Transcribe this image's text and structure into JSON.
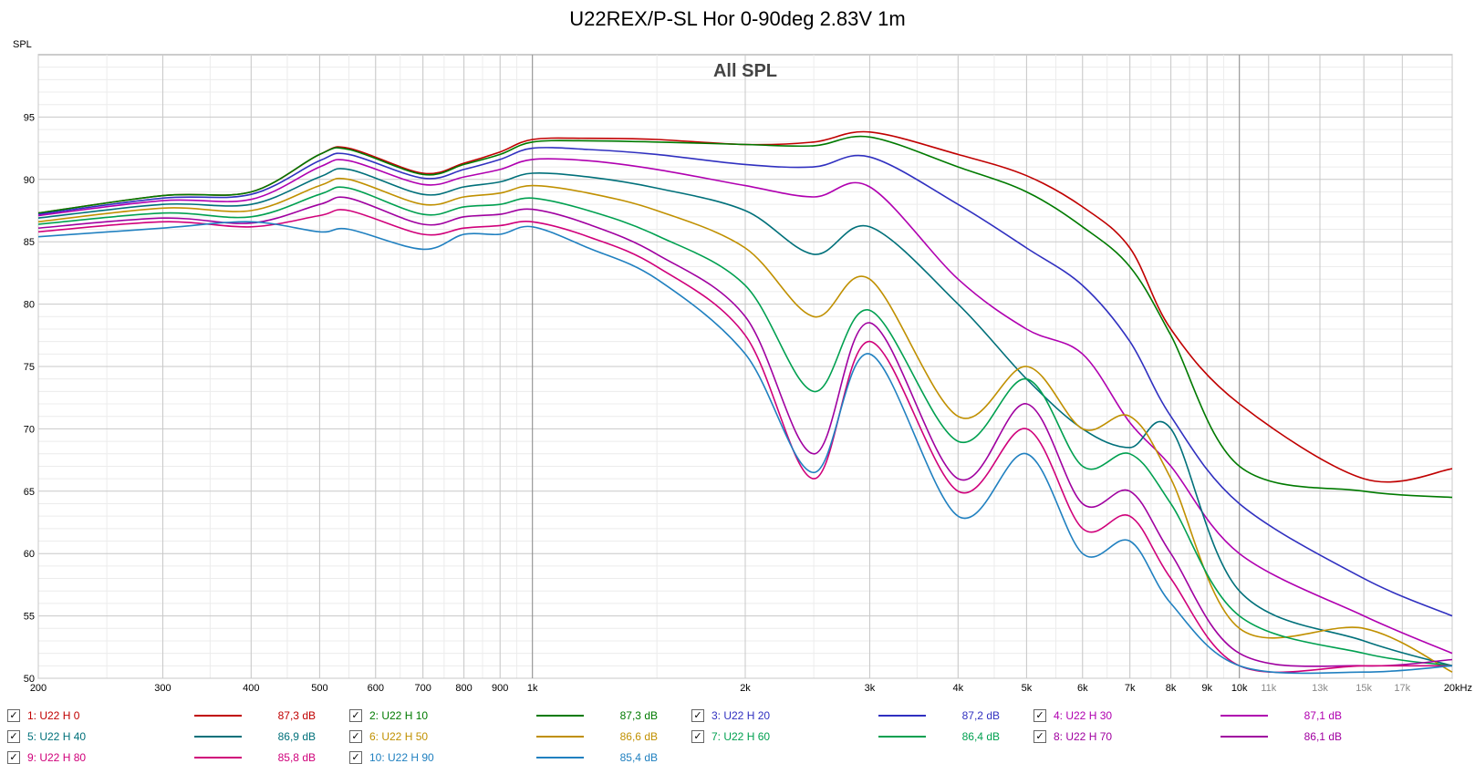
{
  "chart_data": {
    "type": "line",
    "title": "U22REX/P-SL Hor 0-90deg 2.83V 1m",
    "subtitle": "All SPL",
    "ylabel": "SPL",
    "xunit": "Hz",
    "xscale": "log",
    "xlim": [
      200,
      20000
    ],
    "ylim": [
      50,
      100
    ],
    "yticks": [
      50,
      55,
      60,
      65,
      70,
      75,
      80,
      85,
      90,
      95
    ],
    "xticks": [
      {
        "value": 200,
        "label": "200"
      },
      {
        "value": 300,
        "label": "300"
      },
      {
        "value": 400,
        "label": "400"
      },
      {
        "value": 500,
        "label": "500"
      },
      {
        "value": 600,
        "label": "600"
      },
      {
        "value": 700,
        "label": "700"
      },
      {
        "value": 800,
        "label": "800"
      },
      {
        "value": 900,
        "label": "900"
      },
      {
        "value": 1000,
        "label": "1k"
      },
      {
        "value": 2000,
        "label": "2k"
      },
      {
        "value": 3000,
        "label": "3k"
      },
      {
        "value": 4000,
        "label": "4k"
      },
      {
        "value": 5000,
        "label": "5k"
      },
      {
        "value": 6000,
        "label": "6k"
      },
      {
        "value": 7000,
        "label": "7k"
      },
      {
        "value": 8000,
        "label": "8k"
      },
      {
        "value": 9000,
        "label": "9k"
      },
      {
        "value": 10000,
        "label": "10k"
      },
      {
        "value": 11000,
        "label": "11k"
      },
      {
        "value": 13000,
        "label": "13k"
      },
      {
        "value": 15000,
        "label": "15k"
      },
      {
        "value": 17000,
        "label": "17k"
      },
      {
        "value": 20000,
        "label": "20kHz"
      }
    ],
    "grid": true,
    "legend_position": "bottom",
    "x": [
      200,
      300,
      400,
      500,
      550,
      700,
      800,
      900,
      1000,
      1200,
      1500,
      2000,
      2500,
      3000,
      4000,
      5000,
      6000,
      7000,
      8000,
      10000,
      15000,
      20000
    ],
    "series": [
      {
        "name": "1: U22 H 0",
        "value_label": "87,3 dB",
        "color": "#c00000",
        "values": [
          87.3,
          88.7,
          89.0,
          92.0,
          92.5,
          90.5,
          91.3,
          92.2,
          93.2,
          93.3,
          93.2,
          92.8,
          93.0,
          93.8,
          92.0,
          90.3,
          87.8,
          84.5,
          78.0,
          72.0,
          66.0,
          66.8
        ]
      },
      {
        "name": "2: U22 H 10",
        "value_label": "87,3 dB",
        "color": "#007a00",
        "values": [
          87.3,
          88.7,
          89.0,
          92.0,
          92.4,
          90.4,
          91.2,
          92.0,
          93.0,
          93.1,
          93.0,
          92.8,
          92.7,
          93.4,
          91.0,
          89.0,
          86.2,
          83.0,
          77.5,
          67.0,
          65.0,
          64.5
        ]
      },
      {
        "name": "3: U22 H 20",
        "value_label": "87,2 dB",
        "color": "#3030c0",
        "values": [
          87.2,
          88.5,
          88.8,
          91.5,
          92.0,
          90.1,
          90.8,
          91.6,
          92.5,
          92.4,
          92.0,
          91.2,
          91.0,
          91.8,
          88.0,
          84.5,
          81.5,
          77.0,
          71.0,
          64.0,
          58.0,
          55.0
        ]
      },
      {
        "name": "4: U22 H 30",
        "value_label": "87,1 dB",
        "color": "#b000b0",
        "values": [
          87.1,
          88.3,
          88.4,
          91.0,
          91.5,
          89.6,
          90.2,
          90.8,
          91.6,
          91.5,
          90.8,
          89.5,
          88.6,
          89.4,
          82.0,
          78.0,
          76.0,
          70.5,
          67.0,
          60.0,
          55.0,
          52.0
        ]
      },
      {
        "name": "5: U22 H 40",
        "value_label": "86,9 dB",
        "color": "#00707a",
        "values": [
          86.9,
          88.0,
          88.0,
          90.2,
          90.8,
          88.8,
          89.4,
          89.8,
          90.5,
          90.2,
          89.3,
          87.5,
          84.0,
          86.2,
          80.0,
          74.0,
          70.0,
          68.5,
          70.0,
          57.0,
          53.0,
          51.0
        ]
      },
      {
        "name": "6: U22 H 50",
        "value_label": "86,6 dB",
        "color": "#c09000",
        "values": [
          86.6,
          87.7,
          87.5,
          89.5,
          90.0,
          88.0,
          88.6,
          88.9,
          89.5,
          88.9,
          87.5,
          84.5,
          79.0,
          82.0,
          71.0,
          75.0,
          70.0,
          71.0,
          66.0,
          54.0,
          54.0,
          50.5
        ]
      },
      {
        "name": "7: U22 H 60",
        "value_label": "86,4 dB",
        "color": "#00a050",
        "values": [
          86.4,
          87.3,
          87.0,
          88.8,
          89.3,
          87.2,
          87.8,
          88.0,
          88.5,
          87.5,
          85.5,
          81.5,
          73.0,
          79.5,
          69.0,
          74.0,
          67.0,
          68.0,
          64.0,
          55.0,
          52.0,
          51.0
        ]
      },
      {
        "name": "8: U22 H 70",
        "value_label": "86,1 dB",
        "color": "#a000a0",
        "values": [
          86.1,
          86.9,
          86.5,
          88.0,
          88.5,
          86.4,
          87.0,
          87.2,
          87.6,
          86.4,
          84.0,
          79.0,
          68.0,
          78.5,
          66.0,
          72.0,
          64.0,
          65.0,
          60.0,
          52.0,
          51.0,
          51.5
        ]
      },
      {
        "name": "9: U22 H 80",
        "value_label": "85,8 dB",
        "color": "#d0007a",
        "values": [
          85.8,
          86.6,
          86.2,
          87.1,
          87.5,
          85.6,
          86.1,
          86.3,
          86.6,
          85.4,
          83.0,
          77.5,
          66.0,
          77.0,
          65.0,
          70.0,
          62.0,
          63.0,
          58.0,
          51.0,
          51.0,
          51.0
        ]
      },
      {
        "name": "10: U22 H 90",
        "value_label": "85,4 dB",
        "color": "#2080c0",
        "values": [
          85.4,
          86.1,
          86.6,
          85.8,
          86.0,
          84.4,
          85.6,
          85.6,
          86.2,
          84.5,
          82.0,
          76.0,
          66.5,
          76.0,
          63.0,
          68.0,
          60.0,
          61.0,
          56.0,
          51.0,
          50.5,
          51.0
        ]
      }
    ]
  }
}
